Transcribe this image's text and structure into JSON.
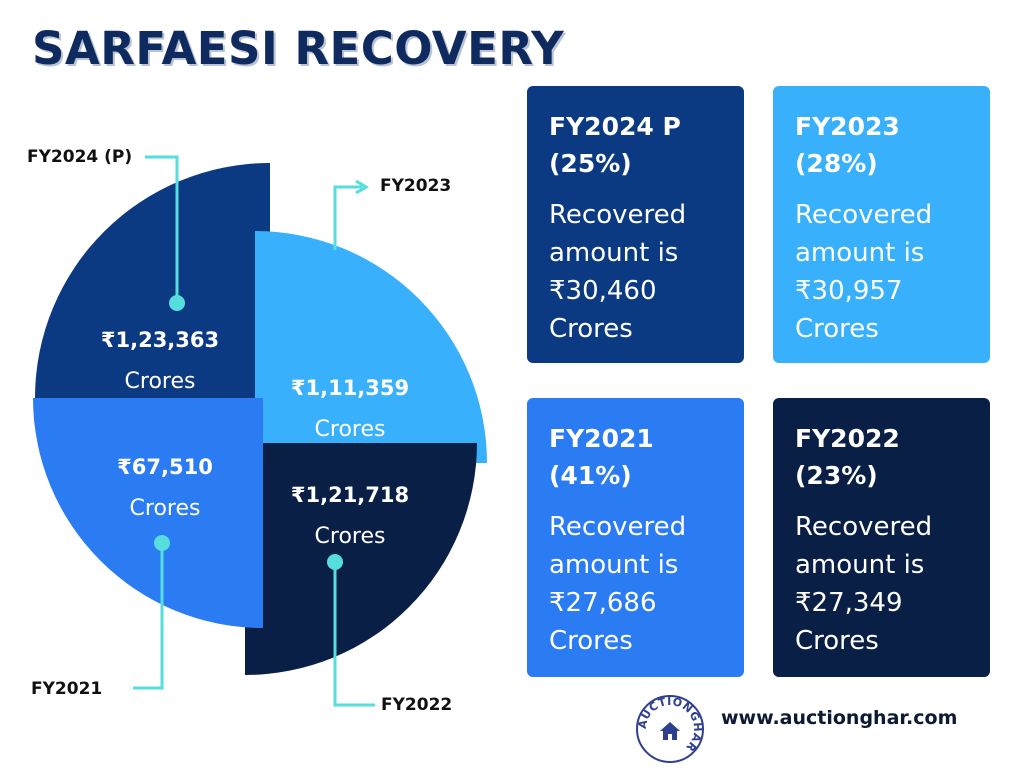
{
  "title": "SARFAESI RECOVERY",
  "chart_data": {
    "type": "pie",
    "categories": [
      "FY2024 (P)",
      "FY2023",
      "FY2022",
      "FY2021"
    ],
    "values": [
      123363,
      111359,
      121718,
      67510
    ],
    "value_labels": [
      "₹1,23,363",
      "₹1,11,359",
      "₹1,21,718",
      "₹67,510"
    ],
    "unit_label": "Crores",
    "colors": [
      "#0b3a82",
      "#39b0fb",
      "#0a1f45",
      "#2b7bf3"
    ],
    "leader_color": "#56ddde"
  },
  "cards": [
    {
      "title_line1": "FY2024 P",
      "title_line2": "(25%)",
      "line1": "Recovered",
      "line2": "amount is",
      "line3": "₹30,460",
      "line4": "Crores",
      "color": "#0b3a82"
    },
    {
      "title_line1": "FY2023",
      "title_line2": "(28%)",
      "line1": "Recovered",
      "line2": "amount is",
      "line3": "₹30,957",
      "line4": "Crores",
      "color": "#39b0fb"
    },
    {
      "title_line1": "FY2021",
      "title_line2": "(41%)",
      "line1": "Recovered",
      "line2": "amount is",
      "line3": "₹27,686",
      "line4": "Crores",
      "color": "#2b7bf3"
    },
    {
      "title_line1": "FY2022",
      "title_line2": "(23%)",
      "line1": "Recovered",
      "line2": "amount is",
      "line3": "₹27,349",
      "line4": "Crores",
      "color": "#0a1f45"
    }
  ],
  "logo": {
    "text": "AUCTIONGHAR",
    "icon": "house-icon"
  },
  "website": "www.auctionghar.com"
}
